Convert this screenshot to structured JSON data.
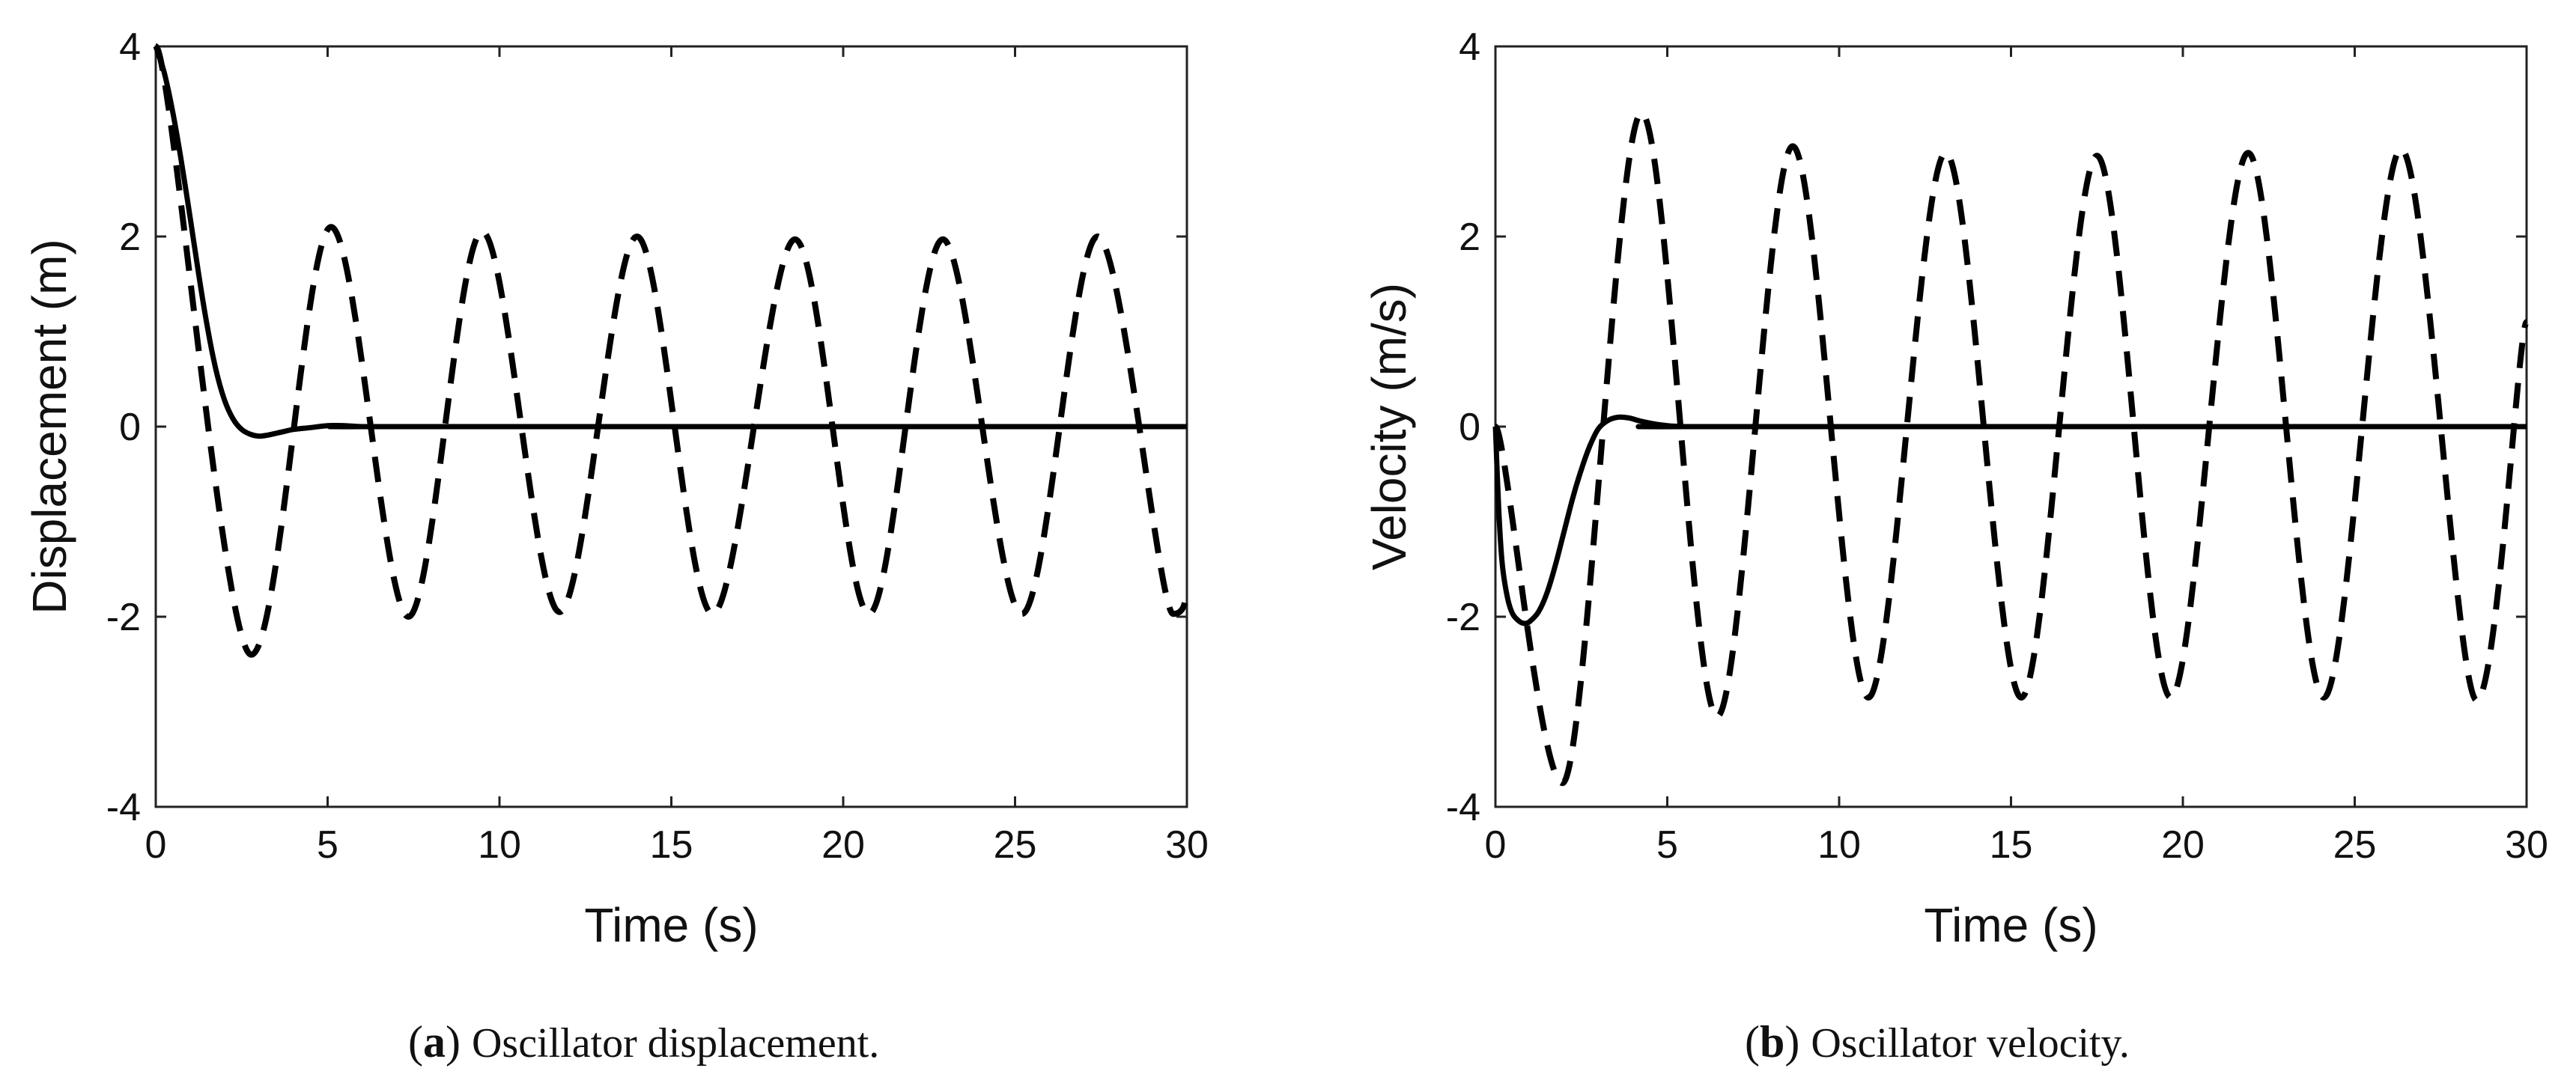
{
  "figure": {
    "caption_a": {
      "letter": "a",
      "text": "Oscillator displacement."
    },
    "caption_b": {
      "letter": "b",
      "text": "Oscillator velocity."
    }
  },
  "styles": {
    "line_color": "#000000",
    "background": "#ffffff"
  },
  "chart_data": [
    {
      "id": "a",
      "type": "line",
      "title": "",
      "xlabel": "Time (s)",
      "ylabel": "Displacement (m)",
      "xlim": [
        0,
        30
      ],
      "ylim": [
        -4,
        4
      ],
      "xticks": [
        0,
        5,
        10,
        15,
        20,
        25,
        30
      ],
      "yticks": [
        -4,
        -2,
        0,
        2,
        4
      ],
      "grid": false,
      "legend": "none",
      "series": [
        {
          "name": "solid",
          "dash": "solid",
          "x": [
            0,
            0.25,
            0.5,
            0.75,
            1.0,
            1.25,
            1.5,
            1.75,
            2.0,
            2.25,
            2.5,
            2.75,
            3.0,
            3.25,
            3.5,
            3.75,
            4.0,
            4.5,
            5.0,
            5.5,
            6.0,
            7.0,
            30
          ],
          "values": [
            4.0,
            3.72,
            3.3,
            2.78,
            2.2,
            1.6,
            1.05,
            0.6,
            0.28,
            0.08,
            -0.03,
            -0.08,
            -0.1,
            -0.09,
            -0.07,
            -0.05,
            -0.03,
            -0.01,
            0.01,
            0.01,
            0.0,
            0.0,
            0.0
          ]
        },
        {
          "name": "dashed",
          "dash": "dashed",
          "x": [
            0,
            2.78,
            5.1,
            7.35,
            9.5,
            11.75,
            14.0,
            16.2,
            18.6,
            20.75,
            22.9,
            25.2,
            27.4,
            29.6,
            30.0
          ],
          "values": [
            4.0,
            -2.4,
            2.1,
            -2.0,
            2.05,
            -1.95,
            2.0,
            -1.97,
            1.97,
            -1.97,
            1.97,
            -1.97,
            2.0,
            -1.97,
            -1.75
          ]
        }
      ]
    },
    {
      "id": "b",
      "type": "line",
      "title": "",
      "xlabel": "Time (s)",
      "ylabel": "Velocity (m/s)",
      "xlim": [
        0,
        30
      ],
      "ylim": [
        -4,
        4
      ],
      "xticks": [
        0,
        5,
        10,
        15,
        20,
        25,
        30
      ],
      "yticks": [
        -4,
        -2,
        0,
        2,
        4
      ],
      "grid": false,
      "legend": "none",
      "series": [
        {
          "name": "solid",
          "dash": "solid",
          "x": [
            0,
            0.1,
            0.2,
            0.35,
            0.5,
            0.7,
            0.85,
            1.0,
            1.25,
            1.5,
            1.75,
            2.0,
            2.25,
            2.5,
            2.75,
            3.0,
            3.3,
            3.6,
            3.9,
            4.2,
            4.6,
            5.0,
            5.5,
            6.0,
            30
          ],
          "values": [
            0.0,
            -0.9,
            -1.45,
            -1.8,
            -1.97,
            -2.05,
            -2.07,
            -2.05,
            -1.95,
            -1.75,
            -1.45,
            -1.1,
            -0.75,
            -0.45,
            -0.2,
            -0.02,
            0.07,
            0.1,
            0.09,
            0.06,
            0.03,
            0.01,
            0.0,
            0.0,
            0.0
          ]
        },
        {
          "name": "dashed",
          "dash": "dashed",
          "x": [
            0,
            1.95,
            4.25,
            6.45,
            8.65,
            10.85,
            13.1,
            15.3,
            17.5,
            19.65,
            21.9,
            24.1,
            26.35,
            28.55,
            30.0
          ],
          "values": [
            0.0,
            -3.75,
            3.3,
            -3.05,
            2.95,
            -2.85,
            2.88,
            -2.85,
            2.85,
            -2.85,
            2.88,
            -2.85,
            2.92,
            -2.88,
            1.1
          ]
        }
      ]
    }
  ]
}
